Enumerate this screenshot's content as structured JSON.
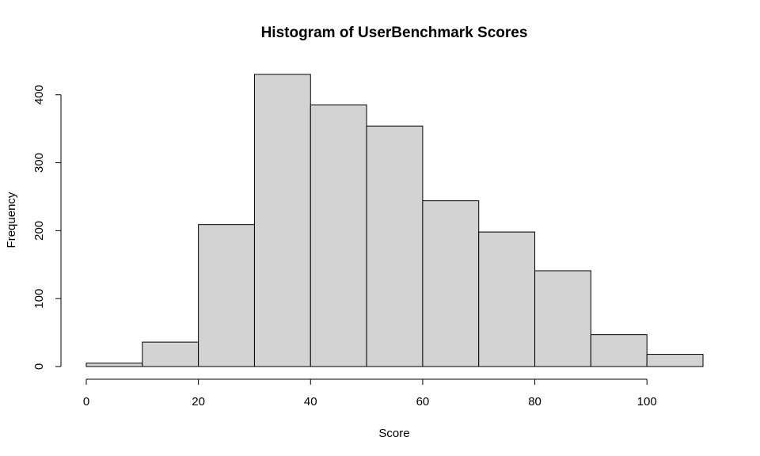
{
  "chart_data": {
    "type": "bar",
    "title": "Histogram of UserBenchmark Scores",
    "xlabel": "Score",
    "ylabel": "Frequency",
    "bins": [
      {
        "from": 0,
        "to": 10,
        "count": 5
      },
      {
        "from": 10,
        "to": 20,
        "count": 36
      },
      {
        "from": 20,
        "to": 30,
        "count": 209
      },
      {
        "from": 30,
        "to": 40,
        "count": 430
      },
      {
        "from": 40,
        "to": 50,
        "count": 385
      },
      {
        "from": 50,
        "to": 60,
        "count": 354
      },
      {
        "from": 60,
        "to": 70,
        "count": 244
      },
      {
        "from": 70,
        "to": 80,
        "count": 198
      },
      {
        "from": 80,
        "to": 90,
        "count": 141
      },
      {
        "from": 90,
        "to": 100,
        "count": 47
      },
      {
        "from": 100,
        "to": 110,
        "count": 18
      }
    ],
    "xlim": [
      0,
      110
    ],
    "ylim": [
      0,
      430
    ],
    "x_ticks": [
      0,
      20,
      40,
      60,
      80,
      100
    ],
    "y_ticks": [
      0,
      100,
      200,
      300,
      400
    ],
    "bar_color": "#d3d3d3",
    "grid": false
  }
}
